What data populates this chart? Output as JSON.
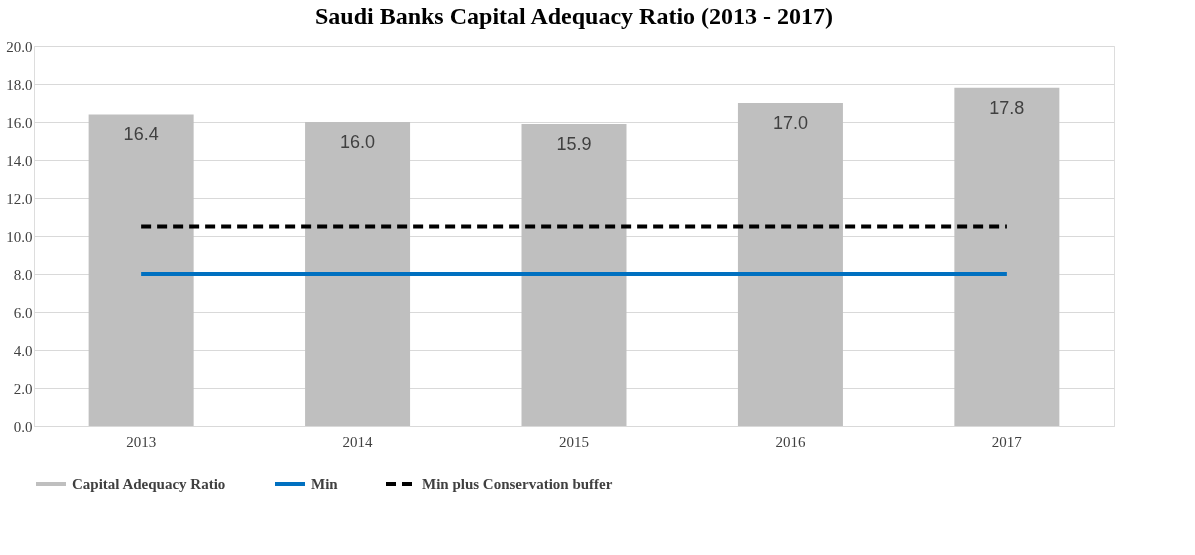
{
  "chart_data": {
    "type": "bar",
    "title": "Saudi Banks Capital Adequacy Ratio (2013 - 2017)",
    "categories": [
      "2013",
      "2014",
      "2015",
      "2016",
      "2017"
    ],
    "series": [
      {
        "name": "Capital Adequacy Ratio",
        "color": "#bfbfbf",
        "values": [
          16.4,
          16.0,
          15.9,
          17.0,
          17.8
        ],
        "value_labels": [
          "16.4",
          "16.0",
          "15.9",
          "17.0",
          "17.8"
        ]
      },
      {
        "name": "Min",
        "type": "line",
        "color": "#0070c0",
        "values": [
          8.0,
          8.0,
          8.0,
          8.0,
          8.0
        ]
      },
      {
        "name": "Min plus Conservation buffer",
        "type": "line",
        "line_style": "dashed",
        "color": "#000000",
        "values": [
          10.5,
          10.5,
          10.5,
          10.5,
          10.5
        ]
      }
    ],
    "ylim": [
      0,
      20
    ],
    "yticks": [
      {
        "value": 0,
        "label": "0.0"
      },
      {
        "value": 2,
        "label": "2.0"
      },
      {
        "value": 4,
        "label": "4.0"
      },
      {
        "value": 6,
        "label": "6.0"
      },
      {
        "value": 8,
        "label": "8.0"
      },
      {
        "value": 10,
        "label": "10.0"
      },
      {
        "value": 12,
        "label": "12.0"
      },
      {
        "value": 14,
        "label": "14.0"
      },
      {
        "value": 16,
        "label": "16.0"
      },
      {
        "value": 18,
        "label": "18.0"
      },
      {
        "value": 20,
        "label": "20.0"
      }
    ],
    "grid": "y",
    "legend": "bottom"
  }
}
